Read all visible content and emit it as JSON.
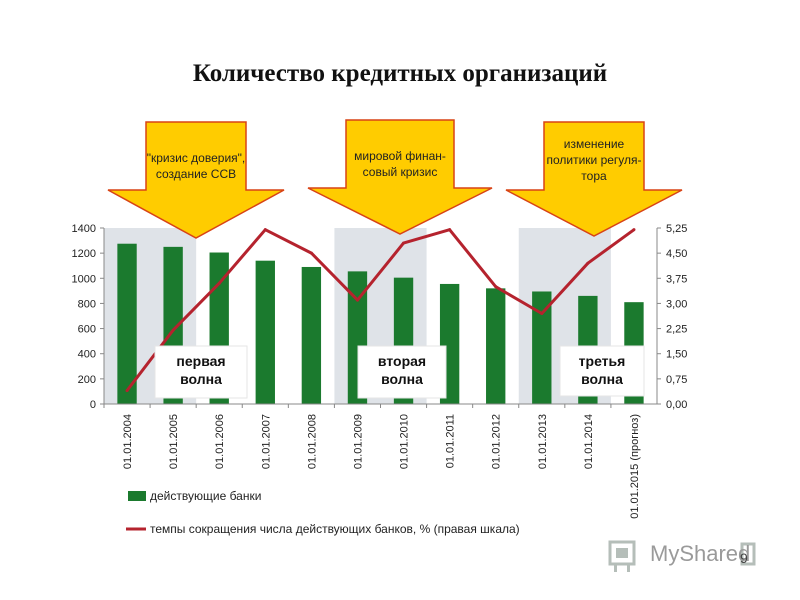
{
  "title": "Количество кредитных организаций",
  "page_number": "9",
  "logo_text": "MyShared",
  "callouts": [
    {
      "lines": [
        "\"кризис доверия\",",
        "создание ССВ"
      ]
    },
    {
      "lines": [
        "мировой финан-",
        "совый кризис"
      ]
    },
    {
      "lines": [
        "изменение",
        "политики регуля-",
        "тора"
      ]
    }
  ],
  "waves": [
    {
      "lines": [
        "первая",
        "волна"
      ]
    },
    {
      "lines": [
        "вторая",
        "волна"
      ]
    },
    {
      "lines": [
        "третья",
        "волна"
      ]
    }
  ],
  "colors": {
    "bar": "#1b7a2e",
    "line": "#b5232e",
    "callout_fill": "#ffcc00",
    "callout_stroke": "#d84315",
    "band": "#dfe3e8"
  },
  "chart_data": {
    "type": "bar",
    "categories": [
      "01.01.2004",
      "01.01.2005",
      "01.01.2006",
      "01.01.2007",
      "01.01.2008",
      "01.01.2009",
      "01.01.2010",
      "01.01.2011",
      "01.01.2012",
      "01.01.2013",
      "01.01.2014",
      "01.01.2015 (прогноз)"
    ],
    "series": [
      {
        "name": "действующие банки",
        "type": "bar",
        "axis": "left",
        "values": [
          1275,
          1250,
          1205,
          1140,
          1090,
          1055,
          1005,
          955,
          920,
          895,
          860,
          810
        ]
      },
      {
        "name": "темпы сокращения числа действующих банков, % (правая шкала)",
        "type": "line",
        "axis": "right",
        "values": [
          0.4,
          2.2,
          3.6,
          5.2,
          4.5,
          3.1,
          4.8,
          5.2,
          3.5,
          2.7,
          4.2,
          5.2
        ]
      }
    ],
    "ylim": [
      0,
      1400
    ],
    "y_ticks": [
      "0",
      "200",
      "400",
      "600",
      "800",
      "1000",
      "1200",
      "1400"
    ],
    "y2lim": [
      0,
      5.25
    ],
    "y2_ticks": [
      "0,00",
      "0,75",
      "1,50",
      "2,25",
      "3,00",
      "3,75",
      "4,50",
      "5,25"
    ],
    "shaded_bands": [
      [
        0,
        2
      ],
      [
        5,
        7
      ],
      [
        9,
        11
      ]
    ],
    "legend_position": "bottom",
    "grid": false
  }
}
